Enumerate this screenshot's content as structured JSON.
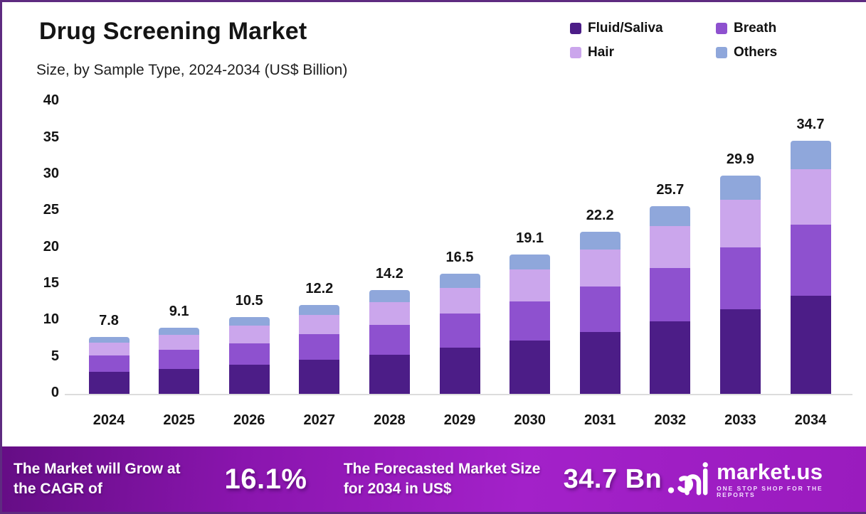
{
  "title": "Drug Screening Market",
  "subtitle": "Size, by Sample Type, 2024-2034 (US$ Billion)",
  "chart_data": {
    "type": "bar",
    "stacked": true,
    "title": "Drug Screening Market Size, by Sample Type, 2024-2034 (US$ Billion)",
    "categories": [
      "2024",
      "2025",
      "2026",
      "2027",
      "2028",
      "2029",
      "2030",
      "2031",
      "2032",
      "2033",
      "2034"
    ],
    "series": [
      {
        "name": "Fluid/Saliva",
        "color": "#4C1D87",
        "values": [
          3.0,
          3.4,
          4.0,
          4.7,
          5.4,
          6.3,
          7.3,
          8.5,
          9.9,
          11.6,
          13.4
        ]
      },
      {
        "name": "Breath",
        "color": "#8E51CF",
        "values": [
          2.3,
          2.6,
          2.9,
          3.5,
          4.0,
          4.7,
          5.4,
          6.2,
          7.3,
          8.5,
          9.8
        ]
      },
      {
        "name": "Hair",
        "color": "#CBA6EC",
        "values": [
          1.7,
          2.1,
          2.4,
          2.6,
          3.2,
          3.5,
          4.3,
          5.1,
          5.8,
          6.5,
          7.6
        ]
      },
      {
        "name": "Others",
        "color": "#8FA7DB",
        "values": [
          0.8,
          1.0,
          1.2,
          1.4,
          1.6,
          2.0,
          2.1,
          2.4,
          2.7,
          3.3,
          3.9
        ]
      }
    ],
    "totals": [
      "7.8",
      "9.1",
      "10.5",
      "12.2",
      "14.2",
      "16.5",
      "19.1",
      "22.2",
      "25.7",
      "29.9",
      "34.7"
    ],
    "xlabel": "",
    "ylabel": "",
    "ylim": [
      0,
      40
    ],
    "yticks": [
      0,
      5,
      10,
      15,
      20,
      25,
      30,
      35,
      40
    ],
    "grid": false,
    "legend_position": "top-right"
  },
  "banner": {
    "left_text": "The Market will Grow at the CAGR of",
    "cagr_value": "16.1%",
    "mid_text": "The Forecasted Market Size for 2034 in US$",
    "forecast_value": "34.7 Bn",
    "brand_name": "market.us",
    "brand_tagline": "ONE STOP SHOP FOR THE REPORTS"
  },
  "colors": {
    "frame_border": "#5e2b80",
    "banner_gradient_start": "#650d85",
    "banner_gradient_end": "#a321c9",
    "axis_line": "#dcdcdc",
    "text": "#141414"
  }
}
